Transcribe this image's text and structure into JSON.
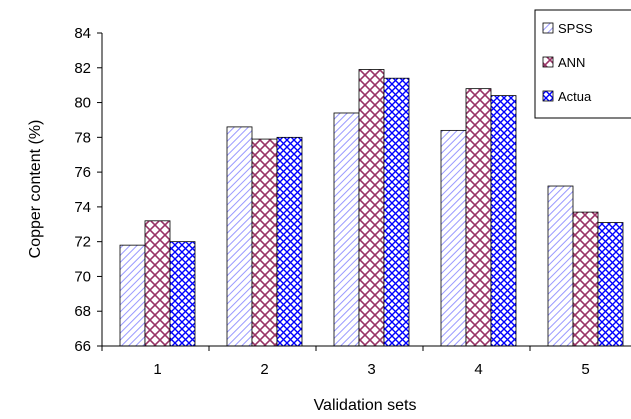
{
  "chart_data": {
    "type": "bar",
    "categories": [
      "1",
      "2",
      "3",
      "4",
      "5"
    ],
    "series": [
      {
        "name": "SPSS",
        "values": [
          71.8,
          78.6,
          79.4,
          78.4,
          75.2
        ],
        "pattern": "diagonal-hatch",
        "color": "#9999ff"
      },
      {
        "name": "ANN",
        "values": [
          73.2,
          77.9,
          81.9,
          80.8,
          73.7
        ],
        "pattern": "diamond-lattice",
        "color": "#993366"
      },
      {
        "name": "Actua",
        "values": [
          72.0,
          78.0,
          81.4,
          80.4,
          73.1
        ],
        "pattern": "cross-hatch",
        "color": "#0000ff"
      }
    ],
    "xlabel": "Validation sets",
    "ylabel": "Copper content (%)",
    "ylim": [
      66,
      84
    ],
    "yticks": [
      66,
      68,
      70,
      72,
      74,
      76,
      78,
      80,
      82,
      84
    ],
    "grid": false,
    "legend_position": "top-right"
  }
}
